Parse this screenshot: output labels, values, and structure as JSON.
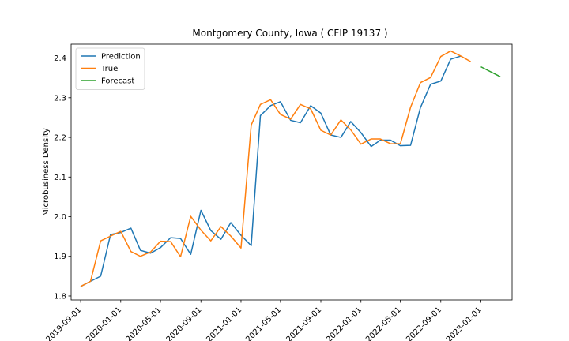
{
  "chart_data": {
    "type": "line",
    "title": "Montgomery County, Iowa ( CFIP 19137 )",
    "xlabel": "",
    "ylabel": "Microbusiness Density",
    "ylim": [
      1.79,
      2.435
    ],
    "xlim": [
      "2019-08-03",
      "2023-04-06"
    ],
    "yticks": [
      1.8,
      1.9,
      2.0,
      2.1,
      2.2,
      2.3,
      2.4
    ],
    "ytick_labels": [
      "1.8",
      "1.9",
      "2.0",
      "2.1",
      "2.2",
      "2.3",
      "2.4"
    ],
    "xticks": [
      "2019-09-01",
      "2020-01-01",
      "2020-05-01",
      "2020-09-01",
      "2021-01-01",
      "2021-05-01",
      "2021-09-01",
      "2022-01-01",
      "2022-05-01",
      "2022-09-01",
      "2023-01-01"
    ],
    "grid": false,
    "legend_position": "top-left",
    "series": [
      {
        "name": "Prediction",
        "color": "#1f77b4",
        "x": [
          "2019-09-01",
          "2019-10-01",
          "2019-11-01",
          "2019-12-01",
          "2020-01-01",
          "2020-02-01",
          "2020-03-01",
          "2020-04-01",
          "2020-05-01",
          "2020-06-01",
          "2020-07-01",
          "2020-08-01",
          "2020-09-01",
          "2020-10-01",
          "2020-11-01",
          "2020-12-01",
          "2021-01-01",
          "2021-02-01",
          "2021-03-01",
          "2021-04-01",
          "2021-05-01",
          "2021-06-01",
          "2021-07-01",
          "2021-08-01",
          "2021-09-01",
          "2021-10-01",
          "2021-11-01",
          "2021-12-01",
          "2022-01-01",
          "2022-02-01",
          "2022-03-01",
          "2022-04-01",
          "2022-05-01",
          "2022-06-01",
          "2022-07-01",
          "2022-08-01",
          "2022-09-01",
          "2022-10-01",
          "2022-11-01"
        ],
        "values": [
          1.824,
          1.837,
          1.85,
          1.955,
          1.96,
          1.971,
          1.915,
          1.908,
          1.922,
          1.947,
          1.945,
          1.905,
          2.016,
          1.965,
          1.943,
          1.985,
          1.953,
          1.927,
          2.255,
          2.28,
          2.29,
          2.243,
          2.237,
          2.28,
          2.261,
          2.206,
          2.2,
          2.24,
          2.212,
          2.177,
          2.193,
          2.193,
          2.179,
          2.18,
          2.275,
          2.334,
          2.342,
          2.397,
          2.405
        ]
      },
      {
        "name": "True",
        "color": "#ff7f0e",
        "x": [
          "2019-09-01",
          "2019-10-01",
          "2019-11-01",
          "2019-12-01",
          "2020-01-01",
          "2020-02-01",
          "2020-03-01",
          "2020-04-01",
          "2020-05-01",
          "2020-06-01",
          "2020-07-01",
          "2020-08-01",
          "2020-09-01",
          "2020-10-01",
          "2020-11-01",
          "2020-12-01",
          "2021-01-01",
          "2021-02-01",
          "2021-03-01",
          "2021-04-01",
          "2021-05-01",
          "2021-06-01",
          "2021-07-01",
          "2021-08-01",
          "2021-09-01",
          "2021-10-01",
          "2021-11-01",
          "2021-12-01",
          "2022-01-01",
          "2022-02-01",
          "2022-03-01",
          "2022-04-01",
          "2022-05-01",
          "2022-06-01",
          "2022-07-01",
          "2022-08-01",
          "2022-09-01",
          "2022-10-01",
          "2022-11-01",
          "2022-12-01"
        ],
        "values": [
          1.824,
          1.837,
          1.939,
          1.951,
          1.963,
          1.912,
          1.9,
          1.911,
          1.938,
          1.937,
          1.899,
          2.001,
          1.966,
          1.939,
          1.975,
          1.951,
          1.921,
          2.231,
          2.283,
          2.295,
          2.258,
          2.246,
          2.283,
          2.272,
          2.218,
          2.206,
          2.244,
          2.219,
          2.183,
          2.196,
          2.196,
          2.184,
          2.184,
          2.276,
          2.338,
          2.351,
          2.404,
          2.418,
          2.405,
          2.391
        ]
      },
      {
        "name": "Forecast",
        "color": "#2ca02c",
        "x": [
          "2023-01-01",
          "2023-03-01"
        ],
        "values": [
          2.378,
          2.353
        ]
      }
    ]
  }
}
